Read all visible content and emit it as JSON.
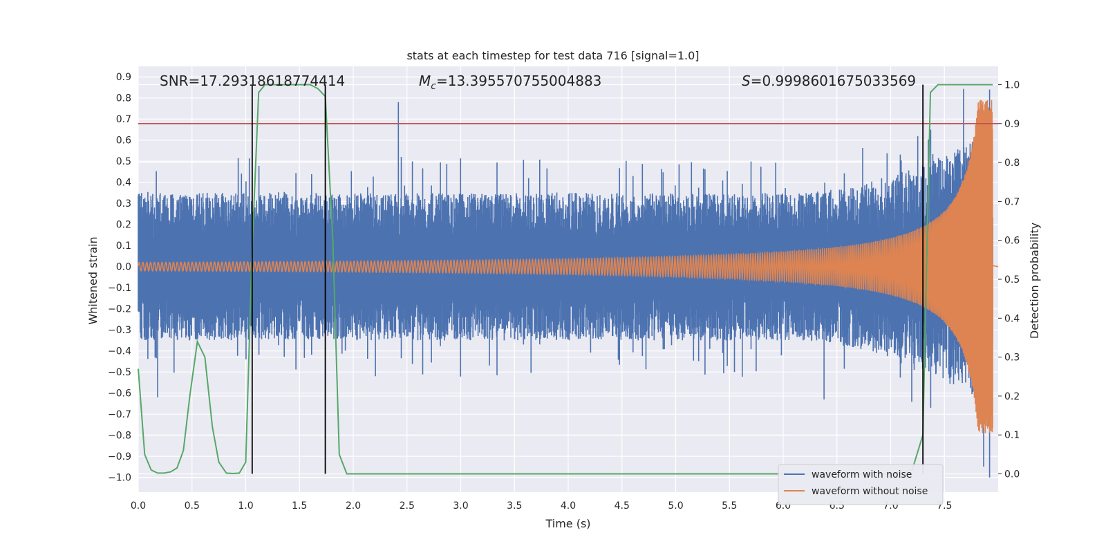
{
  "chart_data": {
    "type": "line",
    "title": "stats at each timestep for test data 716 [signal=1.0]",
    "xlabel": "Time (s)",
    "ylabel": "Whitened strain",
    "y2label": "Detection probability",
    "xlim": [
      0.0,
      8.0
    ],
    "ylim": [
      -1.07,
      0.95
    ],
    "y2lim": [
      -0.047,
      1.047
    ],
    "xticks": [
      "0.0",
      "0.5",
      "1.0",
      "1.5",
      "2.0",
      "2.5",
      "3.0",
      "3.5",
      "4.0",
      "4.5",
      "5.0",
      "5.5",
      "6.0",
      "6.5",
      "7.0",
      "7.5"
    ],
    "yticks": [
      "0.9",
      "0.8",
      "0.7",
      "0.6",
      "0.5",
      "0.4",
      "0.3",
      "0.2",
      "0.1",
      "0.0",
      "-0.1",
      "-0.2",
      "-0.3",
      "-0.4",
      "-0.5",
      "-0.6",
      "-0.7",
      "-0.8",
      "-0.9",
      "-1.0"
    ],
    "y2ticks": [
      "1.0",
      "0.9",
      "0.8",
      "0.7",
      "0.6",
      "0.5",
      "0.4",
      "0.3",
      "0.2",
      "0.1",
      "0.0"
    ],
    "grid": true,
    "legend_placement": "lower-right",
    "annotations": {
      "snr": "SNR=17.29318618774414",
      "mc_symbol": "M",
      "mc_sub": "c",
      "mc_value": "=13.395570755004883",
      "s_symbol": "S",
      "s_value": "=0.9998601675033569"
    },
    "threshold": {
      "axis": "right",
      "value": 0.9,
      "color": "#c44e52"
    },
    "event_markers": [
      1.06,
      1.74,
      7.3
    ],
    "series": [
      {
        "name": "waveform with noise",
        "axis": "left",
        "color": "#4c72b0",
        "envelope": {
          "t_end": 7.95,
          "base_amplitude": 0.35,
          "peak_values": [
            [
              2.42,
              0.78
            ],
            [
              0.18,
              -0.62
            ],
            [
              6.38,
              -0.63
            ],
            [
              7.92,
              -1.0
            ],
            [
              7.92,
              0.84
            ]
          ]
        }
      },
      {
        "name": "waveform without noise",
        "axis": "left",
        "color": "#dd8452",
        "chirp": {
          "t_coalescence": 7.95,
          "amplitude_start": 0.02,
          "amplitude_peak": 0.79
        }
      },
      {
        "name": "detection probability",
        "axis": "right",
        "color": "#55a868",
        "x": [
          0.0,
          0.06,
          0.12,
          0.18,
          0.24,
          0.3,
          0.36,
          0.42,
          0.48,
          0.55,
          0.62,
          0.69,
          0.75,
          0.82,
          0.88,
          0.94,
          1.0,
          1.06,
          1.12,
          1.18,
          1.3,
          1.4,
          1.5,
          1.6,
          1.67,
          1.74,
          1.81,
          1.87,
          1.94,
          2.0,
          3.0,
          4.0,
          5.0,
          6.0,
          7.0,
          7.2,
          7.3,
          7.37,
          7.44,
          7.5,
          7.6,
          7.7,
          7.8,
          7.9,
          7.95
        ],
        "values": [
          0.27,
          0.05,
          0.01,
          0.002,
          0.002,
          0.005,
          0.015,
          0.06,
          0.2,
          0.34,
          0.3,
          0.12,
          0.03,
          0.002,
          0.001,
          0.002,
          0.03,
          0.58,
          0.98,
          1.0,
          1.0,
          1.0,
          1.0,
          1.0,
          0.99,
          0.97,
          0.6,
          0.05,
          0.0,
          0.0,
          0.0,
          0.0,
          0.0,
          0.0,
          0.0,
          0.01,
          0.1,
          0.98,
          1.0,
          1.0,
          1.0,
          1.0,
          1.0,
          1.0,
          1.0
        ]
      }
    ]
  }
}
